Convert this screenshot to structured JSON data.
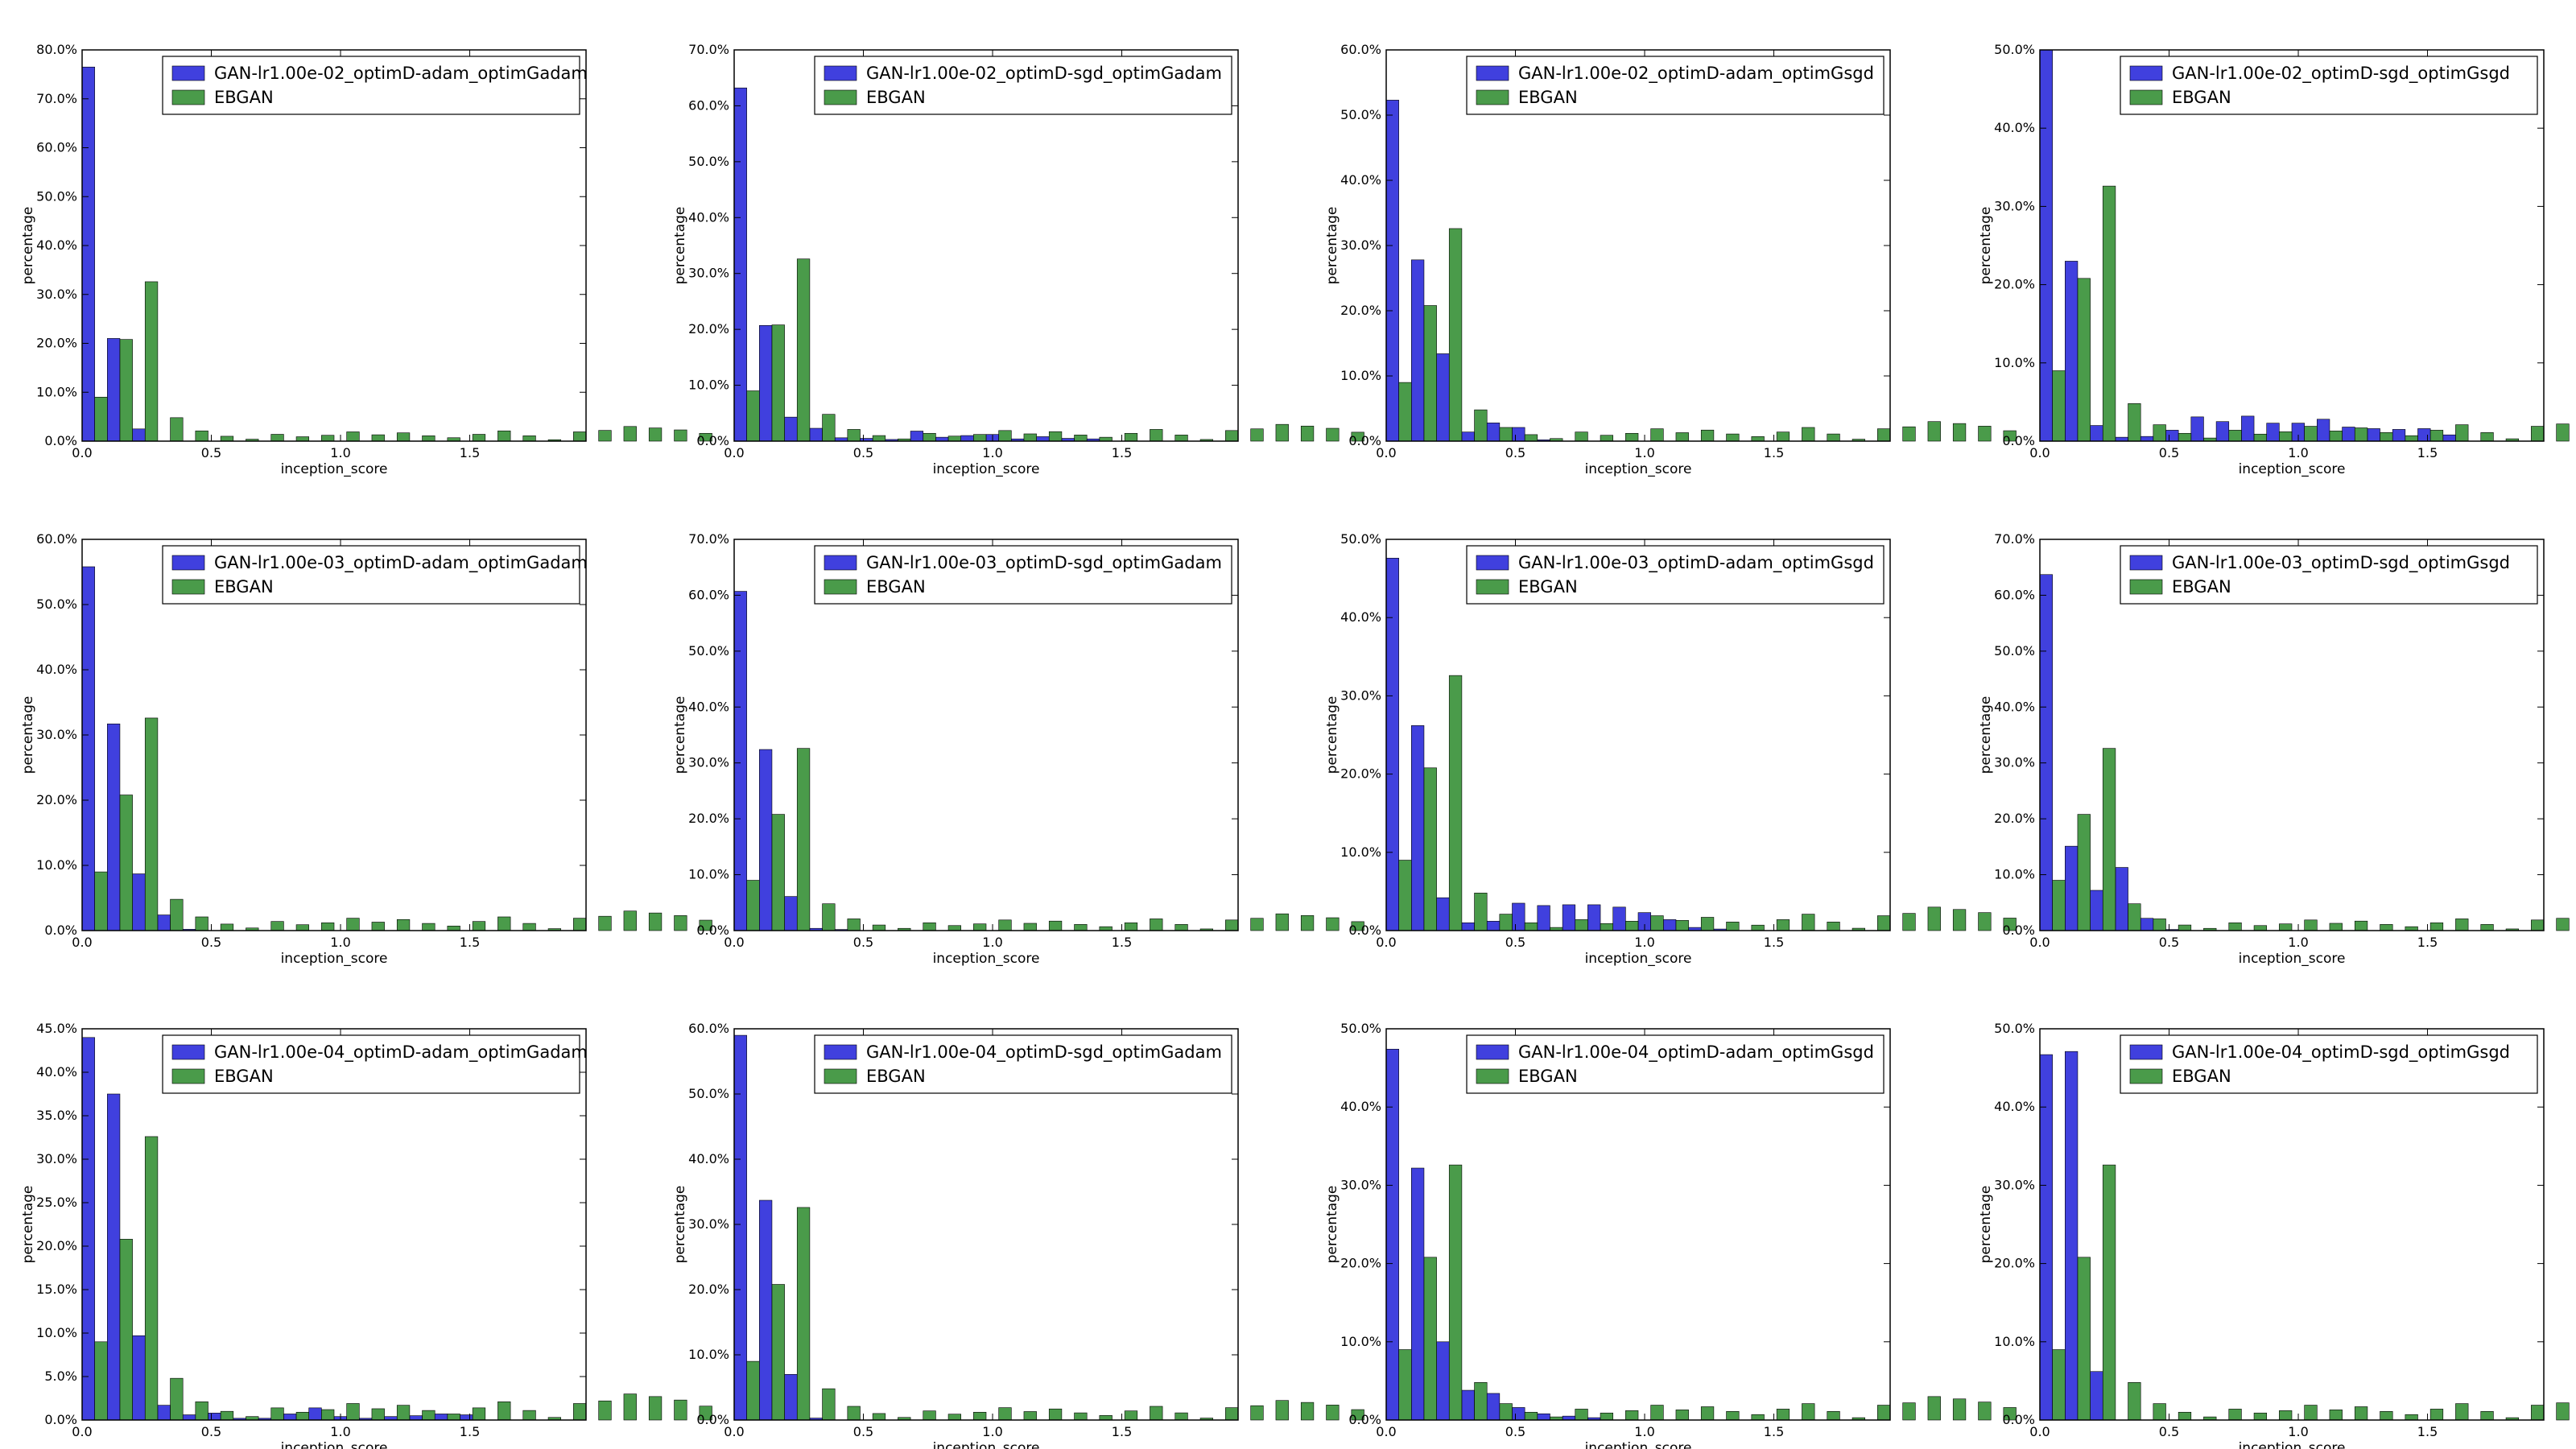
{
  "figure": {
    "x_label": "inception_score",
    "y_label": "percentage",
    "colors": {
      "GAN": "#1f1fd8",
      "EBGAN": "#2a8a2a"
    }
  },
  "chart_data": [
    {
      "type": "bar",
      "legend": [
        "GAN-lr1.00e-02_optimD-adam_optimGadam",
        "EBGAN"
      ],
      "legend_position": "top-right",
      "xlabel": "inception_score",
      "ylabel": "percentage",
      "xlim": [
        0,
        1.95
      ],
      "ylim": [
        0,
        0.8
      ],
      "yticks": [
        0,
        0.1,
        0.2,
        0.3,
        0.4,
        0.5,
        0.6,
        0.7,
        0.8
      ],
      "xticks": [
        0,
        0.5,
        1.0,
        1.5
      ],
      "bin_width": 0.0975,
      "series": [
        {
          "name": "GAN-lr1.00e-02_optimD-adam_optimGadam",
          "values": [
            0.765,
            0.21,
            0.025,
            0,
            0,
            0,
            0,
            0,
            0,
            0,
            0,
            0,
            0,
            0,
            0,
            0,
            0,
            0,
            0,
            0
          ]
        },
        {
          "name": "EBGAN",
          "values": [
            0.09,
            0.208,
            0.326,
            0.048,
            0.021,
            0.01,
            0.004,
            0.014,
            0.009,
            0.012,
            0.019,
            0.013,
            0.017,
            0.011,
            0.007,
            0.014,
            0.021,
            0.011,
            0.003,
            0.019,
            0.022,
            0.03,
            0.027,
            0.023,
            0.016
          ]
        }
      ]
    },
    {
      "type": "bar",
      "legend": [
        "GAN-lr1.00e-02_optimD-sgd_optimGadam",
        "EBGAN"
      ],
      "legend_position": "top-right",
      "xlabel": "inception_score",
      "ylabel": "percentage",
      "xlim": [
        0,
        1.95
      ],
      "ylim": [
        0,
        0.7
      ],
      "yticks": [
        0,
        0.1,
        0.2,
        0.3,
        0.4,
        0.5,
        0.6,
        0.7
      ],
      "xticks": [
        0,
        0.5,
        1.0,
        1.5
      ],
      "bin_width": 0.0975,
      "series": [
        {
          "name": "GAN-lr1.00e-02_optimD-sgd_optimGadam",
          "values": [
            0.632,
            0.207,
            0.043,
            0.023,
            0.006,
            0.005,
            0.003,
            0.018,
            0.007,
            0.01,
            0.012,
            0.004,
            0.008,
            0.005,
            0.004,
            0,
            0,
            0,
            0,
            0
          ]
        },
        {
          "name": "EBGAN",
          "values": [
            0.09,
            0.208,
            0.326,
            0.048,
            0.021,
            0.01,
            0.004,
            0.014,
            0.009,
            0.012,
            0.019,
            0.013,
            0.017,
            0.011,
            0.007,
            0.014,
            0.021,
            0.011,
            0.003,
            0.019,
            0.022,
            0.03,
            0.027,
            0.023,
            0.016
          ]
        }
      ]
    },
    {
      "type": "bar",
      "legend": [
        "GAN-lr1.00e-02_optimD-adam_optimGsgd",
        "EBGAN"
      ],
      "legend_position": "top-right",
      "xlabel": "inception_score",
      "ylabel": "percentage",
      "xlim": [
        0,
        1.95
      ],
      "ylim": [
        0,
        0.6
      ],
      "yticks": [
        0,
        0.1,
        0.2,
        0.3,
        0.4,
        0.5,
        0.6
      ],
      "xticks": [
        0,
        0.5,
        1.0,
        1.5
      ],
      "bin_width": 0.0975,
      "series": [
        {
          "name": "GAN-lr1.00e-02_optimD-adam_optimGsgd",
          "values": [
            0.523,
            0.278,
            0.134,
            0.014,
            0.028,
            0.021,
            0.002,
            0,
            0,
            0,
            0,
            0,
            0,
            0,
            0,
            0,
            0,
            0,
            0,
            0
          ]
        },
        {
          "name": "EBGAN",
          "values": [
            0.09,
            0.208,
            0.326,
            0.048,
            0.021,
            0.01,
            0.004,
            0.014,
            0.009,
            0.012,
            0.019,
            0.013,
            0.017,
            0.011,
            0.007,
            0.014,
            0.021,
            0.011,
            0.003,
            0.019,
            0.022,
            0.03,
            0.027,
            0.023,
            0.016
          ]
        }
      ]
    },
    {
      "type": "bar",
      "legend": [
        "GAN-lr1.00e-02_optimD-sgd_optimGsgd",
        "EBGAN"
      ],
      "legend_position": "top-right",
      "xlabel": "inception_score",
      "ylabel": "percentage",
      "xlim": [
        0,
        1.95
      ],
      "ylim": [
        0,
        0.5
      ],
      "yticks": [
        0,
        0.1,
        0.2,
        0.3,
        0.4,
        0.5
      ],
      "xticks": [
        0,
        0.5,
        1.0,
        1.5
      ],
      "bin_width": 0.0975,
      "series": [
        {
          "name": "GAN-lr1.00e-02_optimD-sgd_optimGsgd",
          "values": [
            0.5,
            0.23,
            0.02,
            0.005,
            0.006,
            0.014,
            0.031,
            0.025,
            0.032,
            0.023,
            0.023,
            0.028,
            0.018,
            0.016,
            0.015,
            0.016,
            0.008,
            0,
            0,
            0
          ]
        },
        {
          "name": "EBGAN",
          "values": [
            0.09,
            0.208,
            0.326,
            0.048,
            0.021,
            0.01,
            0.004,
            0.014,
            0.009,
            0.012,
            0.019,
            0.013,
            0.017,
            0.011,
            0.007,
            0.014,
            0.021,
            0.011,
            0.003,
            0.019,
            0.022,
            0.03,
            0.027,
            0.023,
            0.016
          ]
        }
      ]
    },
    {
      "type": "bar",
      "legend": [
        "GAN-lr1.00e-03_optimD-adam_optimGadam",
        "EBGAN"
      ],
      "legend_position": "top-right",
      "xlabel": "inception_score",
      "ylabel": "percentage",
      "xlim": [
        0,
        1.95
      ],
      "ylim": [
        0,
        0.6
      ],
      "yticks": [
        0,
        0.1,
        0.2,
        0.3,
        0.4,
        0.5,
        0.6
      ],
      "xticks": [
        0,
        0.5,
        1.0,
        1.5
      ],
      "bin_width": 0.0975,
      "series": [
        {
          "name": "GAN-lr1.00e-03_optimD-adam_optimGadam",
          "values": [
            0.558,
            0.317,
            0.087,
            0.024,
            0.002,
            0,
            0,
            0,
            0,
            0,
            0,
            0,
            0,
            0,
            0,
            0,
            0,
            0,
            0,
            0
          ]
        },
        {
          "name": "EBGAN",
          "values": [
            0.09,
            0.208,
            0.326,
            0.048,
            0.021,
            0.01,
            0.004,
            0.014,
            0.009,
            0.012,
            0.019,
            0.013,
            0.017,
            0.011,
            0.007,
            0.014,
            0.021,
            0.011,
            0.003,
            0.019,
            0.022,
            0.03,
            0.027,
            0.023,
            0.016
          ]
        }
      ]
    },
    {
      "type": "bar",
      "legend": [
        "GAN-lr1.00e-03_optimD-sgd_optimGadam",
        "EBGAN"
      ],
      "legend_position": "top-right",
      "xlabel": "inception_score",
      "ylabel": "percentage",
      "xlim": [
        0,
        1.95
      ],
      "ylim": [
        0,
        0.7
      ],
      "yticks": [
        0,
        0.1,
        0.2,
        0.3,
        0.4,
        0.5,
        0.6,
        0.7
      ],
      "xticks": [
        0,
        0.5,
        1.0,
        1.5
      ],
      "bin_width": 0.0975,
      "series": [
        {
          "name": "GAN-lr1.00e-03_optimD-sgd_optimGadam",
          "values": [
            0.607,
            0.324,
            0.061,
            0.004,
            0.002,
            0,
            0,
            0,
            0,
            0,
            0,
            0,
            0,
            0,
            0,
            0,
            0,
            0,
            0,
            0
          ]
        },
        {
          "name": "EBGAN",
          "values": [
            0.09,
            0.208,
            0.326,
            0.048,
            0.021,
            0.01,
            0.004,
            0.014,
            0.009,
            0.012,
            0.019,
            0.013,
            0.017,
            0.011,
            0.007,
            0.014,
            0.021,
            0.011,
            0.003,
            0.019,
            0.022,
            0.03,
            0.027,
            0.023,
            0.016
          ]
        }
      ]
    },
    {
      "type": "bar",
      "legend": [
        "GAN-lr1.00e-03_optimD-adam_optimGsgd",
        "EBGAN"
      ],
      "legend_position": "top-right",
      "xlabel": "inception_score",
      "ylabel": "percentage",
      "xlim": [
        0,
        1.95
      ],
      "ylim": [
        0,
        0.5
      ],
      "yticks": [
        0,
        0.1,
        0.2,
        0.3,
        0.4,
        0.5
      ],
      "xticks": [
        0,
        0.5,
        1.0,
        1.5
      ],
      "bin_width": 0.0975,
      "series": [
        {
          "name": "GAN-lr1.00e-03_optimD-adam_optimGsgd",
          "values": [
            0.476,
            0.262,
            0.042,
            0.01,
            0.012,
            0.035,
            0.032,
            0.033,
            0.033,
            0.03,
            0.023,
            0.014,
            0.004,
            0.002,
            0,
            0,
            0,
            0,
            0,
            0
          ]
        },
        {
          "name": "EBGAN",
          "values": [
            0.09,
            0.208,
            0.326,
            0.048,
            0.021,
            0.01,
            0.004,
            0.014,
            0.009,
            0.012,
            0.019,
            0.013,
            0.017,
            0.011,
            0.007,
            0.014,
            0.021,
            0.011,
            0.003,
            0.019,
            0.022,
            0.03,
            0.027,
            0.023,
            0.016
          ]
        }
      ]
    },
    {
      "type": "bar",
      "legend": [
        "GAN-lr1.00e-03_optimD-sgd_optimGsgd",
        "EBGAN"
      ],
      "legend_position": "top-right",
      "xlabel": "inception_score",
      "ylabel": "percentage",
      "xlim": [
        0,
        1.95
      ],
      "ylim": [
        0,
        0.7
      ],
      "yticks": [
        0,
        0.1,
        0.2,
        0.3,
        0.4,
        0.5,
        0.6,
        0.7
      ],
      "xticks": [
        0,
        0.5,
        1.0,
        1.5
      ],
      "bin_width": 0.0975,
      "series": [
        {
          "name": "GAN-lr1.00e-03_optimD-sgd_optimGsgd",
          "values": [
            0.637,
            0.151,
            0.072,
            0.113,
            0.022,
            0.002,
            0,
            0,
            0,
            0,
            0,
            0,
            0,
            0,
            0,
            0,
            0,
            0,
            0,
            0
          ]
        },
        {
          "name": "EBGAN",
          "values": [
            0.09,
            0.208,
            0.326,
            0.048,
            0.021,
            0.01,
            0.004,
            0.014,
            0.009,
            0.012,
            0.019,
            0.013,
            0.017,
            0.011,
            0.007,
            0.014,
            0.021,
            0.011,
            0.003,
            0.019,
            0.022,
            0.03,
            0.027,
            0.023,
            0.016
          ]
        }
      ]
    },
    {
      "type": "bar",
      "legend": [
        "GAN-lr1.00e-04_optimD-adam_optimGadam",
        "EBGAN"
      ],
      "legend_position": "top-right",
      "xlabel": "inception_score",
      "ylabel": "percentage",
      "xlim": [
        0,
        1.95
      ],
      "ylim": [
        0,
        0.45
      ],
      "yticks": [
        0,
        0.05,
        0.1,
        0.15,
        0.2,
        0.25,
        0.3,
        0.35,
        0.4,
        0.45
      ],
      "xticks": [
        0,
        0.5,
        1.0,
        1.5
      ],
      "bin_width": 0.0975,
      "series": [
        {
          "name": "GAN-lr1.00e-04_optimD-adam_optimGadam",
          "values": [
            0.44,
            0.375,
            0.097,
            0.017,
            0.006,
            0.008,
            0.002,
            0.002,
            0.007,
            0.014,
            0.004,
            0.002,
            0.004,
            0.005,
            0.007,
            0.006,
            0,
            0,
            0,
            0
          ]
        },
        {
          "name": "EBGAN",
          "values": [
            0.09,
            0.208,
            0.326,
            0.048,
            0.021,
            0.01,
            0.004,
            0.014,
            0.009,
            0.012,
            0.019,
            0.013,
            0.017,
            0.011,
            0.007,
            0.014,
            0.021,
            0.011,
            0.003,
            0.019,
            0.022,
            0.03,
            0.027,
            0.023,
            0.016
          ]
        }
      ]
    },
    {
      "type": "bar",
      "legend": [
        "GAN-lr1.00e-04_optimD-sgd_optimGadam",
        "EBGAN"
      ],
      "legend_position": "top-right",
      "xlabel": "inception_score",
      "ylabel": "percentage",
      "xlim": [
        0,
        1.95
      ],
      "ylim": [
        0,
        0.6
      ],
      "yticks": [
        0,
        0.1,
        0.2,
        0.3,
        0.4,
        0.5,
        0.6
      ],
      "xticks": [
        0,
        0.5,
        1.0,
        1.5
      ],
      "bin_width": 0.0975,
      "series": [
        {
          "name": "GAN-lr1.00e-04_optimD-sgd_optimGadam",
          "values": [
            0.59,
            0.337,
            0.07,
            0.003,
            0,
            0,
            0,
            0,
            0,
            0,
            0,
            0,
            0,
            0,
            0,
            0,
            0,
            0,
            0,
            0
          ]
        },
        {
          "name": "EBGAN",
          "values": [
            0.09,
            0.208,
            0.326,
            0.048,
            0.021,
            0.01,
            0.004,
            0.014,
            0.009,
            0.012,
            0.019,
            0.013,
            0.017,
            0.011,
            0.007,
            0.014,
            0.021,
            0.011,
            0.003,
            0.019,
            0.022,
            0.03,
            0.027,
            0.023,
            0.016
          ]
        }
      ]
    },
    {
      "type": "bar",
      "legend": [
        "GAN-lr1.00e-04_optimD-adam_optimGsgd",
        "EBGAN"
      ],
      "legend_position": "top-right",
      "xlabel": "inception_score",
      "ylabel": "percentage",
      "xlim": [
        0,
        1.95
      ],
      "ylim": [
        0,
        0.5
      ],
      "yticks": [
        0,
        0.1,
        0.2,
        0.3,
        0.4,
        0.5
      ],
      "xticks": [
        0,
        0.5,
        1.0,
        1.5
      ],
      "bin_width": 0.0975,
      "series": [
        {
          "name": "GAN-lr1.00e-04_optimD-adam_optimGsgd",
          "values": [
            0.474,
            0.322,
            0.1,
            0.038,
            0.034,
            0.016,
            0.008,
            0.005,
            0.003,
            0,
            0,
            0,
            0,
            0,
            0,
            0,
            0,
            0,
            0,
            0
          ]
        },
        {
          "name": "EBGAN",
          "values": [
            0.09,
            0.208,
            0.326,
            0.048,
            0.021,
            0.01,
            0.004,
            0.014,
            0.009,
            0.012,
            0.019,
            0.013,
            0.017,
            0.011,
            0.007,
            0.014,
            0.021,
            0.011,
            0.003,
            0.019,
            0.022,
            0.03,
            0.027,
            0.023,
            0.016
          ]
        }
      ]
    },
    {
      "type": "bar",
      "legend": [
        "GAN-lr1.00e-04_optimD-sgd_optimGsgd",
        "EBGAN"
      ],
      "legend_position": "top-right",
      "xlabel": "inception_score",
      "ylabel": "percentage",
      "xlim": [
        0,
        1.95
      ],
      "ylim": [
        0,
        0.5
      ],
      "yticks": [
        0,
        0.1,
        0.2,
        0.3,
        0.4,
        0.5
      ],
      "xticks": [
        0,
        0.5,
        1.0,
        1.5
      ],
      "bin_width": 0.0975,
      "series": [
        {
          "name": "GAN-lr1.00e-04_optimD-sgd_optimGsgd",
          "values": [
            0.467,
            0.471,
            0.062,
            0,
            0,
            0,
            0,
            0,
            0,
            0,
            0,
            0,
            0,
            0,
            0,
            0,
            0,
            0,
            0,
            0
          ]
        },
        {
          "name": "EBGAN",
          "values": [
            0.09,
            0.208,
            0.326,
            0.048,
            0.021,
            0.01,
            0.004,
            0.014,
            0.009,
            0.012,
            0.019,
            0.013,
            0.017,
            0.011,
            0.007,
            0.014,
            0.021,
            0.011,
            0.003,
            0.019,
            0.022,
            0.03,
            0.027,
            0.023,
            0.016
          ]
        }
      ]
    }
  ]
}
